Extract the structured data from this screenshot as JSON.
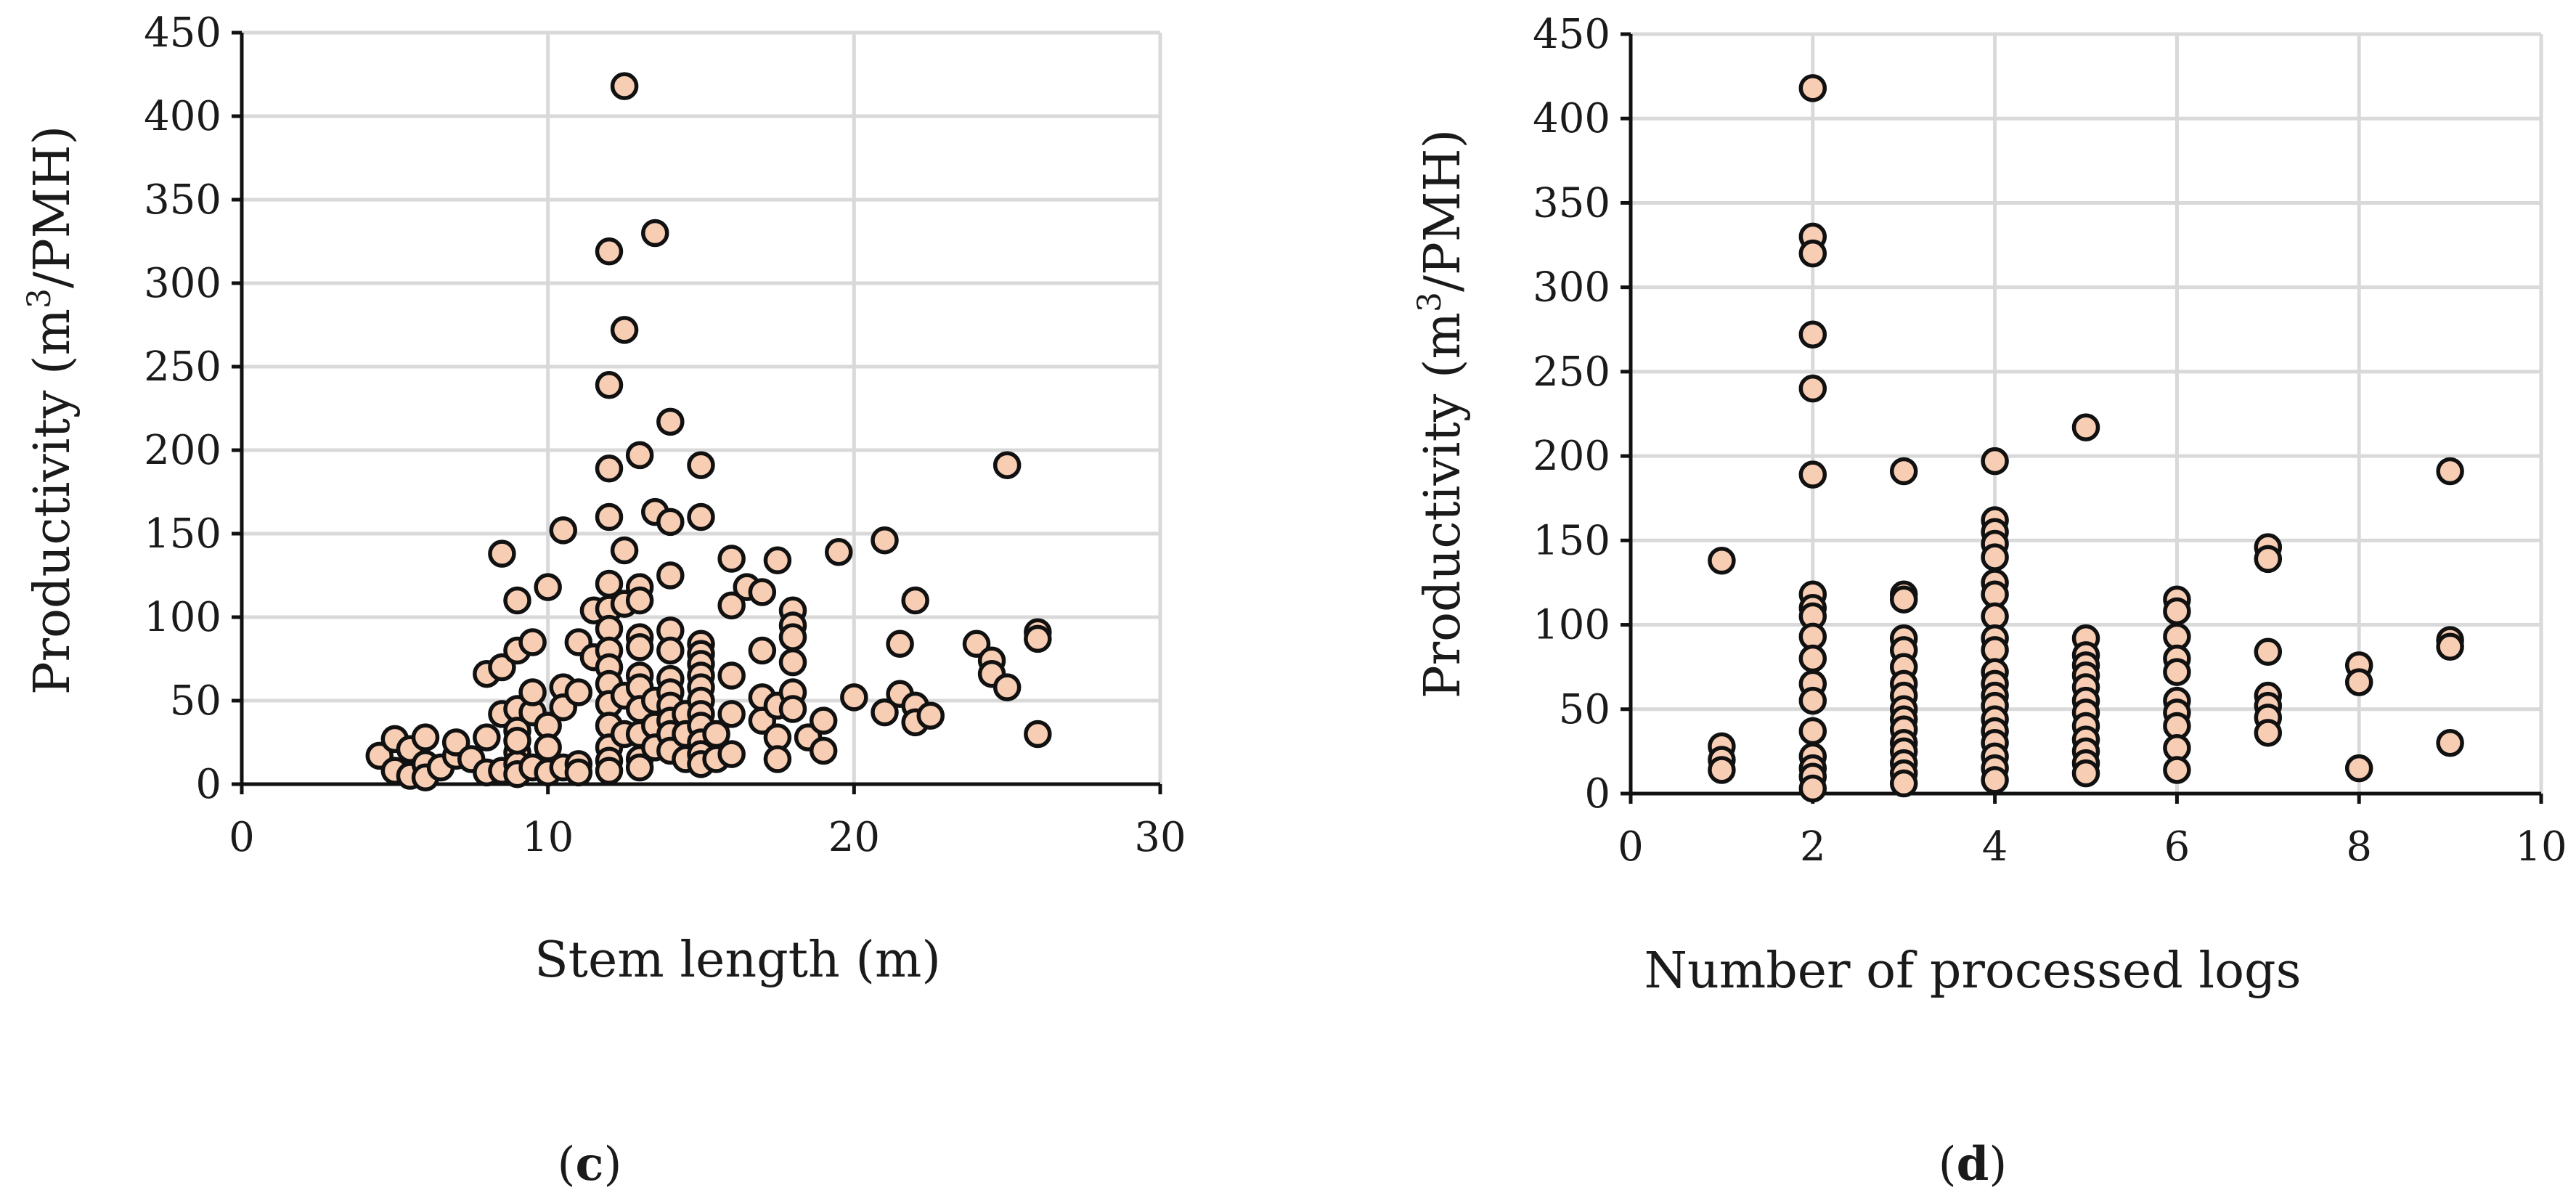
{
  "chart_data": [
    {
      "type": "scatter",
      "panel_label": "c",
      "xlabel": "Stem length (m)",
      "ylabel_prefix": "Productivity (m",
      "ylabel_sup": "3",
      "ylabel_suffix": "/PMH)",
      "xlim": [
        0,
        30
      ],
      "ylim": [
        0,
        450
      ],
      "xticks": [
        0,
        10,
        20,
        30
      ],
      "yticks": [
        0,
        50,
        100,
        150,
        200,
        250,
        300,
        350,
        400,
        450
      ],
      "grid": true,
      "marker_color": "#f7cdb3",
      "series": [
        {
          "name": "Stem length",
          "points": [
            [
              4.5,
              17
            ],
            [
              5,
              8
            ],
            [
              5,
              27
            ],
            [
              5.5,
              21
            ],
            [
              5.5,
              5
            ],
            [
              6,
              12
            ],
            [
              6,
              4
            ],
            [
              6,
              28
            ],
            [
              6.5,
              10
            ],
            [
              7,
              17
            ],
            [
              7,
              25
            ],
            [
              7.5,
              15
            ],
            [
              8,
              28
            ],
            [
              8,
              7
            ],
            [
              8,
              66
            ],
            [
              8.5,
              138
            ],
            [
              8.5,
              42
            ],
            [
              8.5,
              70
            ],
            [
              8.5,
              8
            ],
            [
              9,
              19
            ],
            [
              9,
              12
            ],
            [
              9,
              45
            ],
            [
              9,
              80
            ],
            [
              9,
              110
            ],
            [
              9,
              32
            ],
            [
              9,
              26
            ],
            [
              9,
              6
            ],
            [
              9.5,
              43
            ],
            [
              9.5,
              55
            ],
            [
              9.5,
              85
            ],
            [
              9.5,
              10
            ],
            [
              10,
              118
            ],
            [
              10,
              35
            ],
            [
              10,
              22
            ],
            [
              10,
              7
            ],
            [
              10.5,
              152
            ],
            [
              10.5,
              58
            ],
            [
              10.5,
              46
            ],
            [
              10.5,
              10
            ],
            [
              11,
              85
            ],
            [
              11,
              55
            ],
            [
              11,
              12
            ],
            [
              11,
              7
            ],
            [
              11.5,
              104
            ],
            [
              11.5,
              76
            ],
            [
              12,
              319
            ],
            [
              12,
              239
            ],
            [
              12,
              189
            ],
            [
              12,
              160
            ],
            [
              12,
              120
            ],
            [
              12,
              105
            ],
            [
              12,
              93
            ],
            [
              12,
              80
            ],
            [
              12,
              70
            ],
            [
              12,
              60
            ],
            [
              12,
              48
            ],
            [
              12,
              35
            ],
            [
              12,
              22
            ],
            [
              12,
              14
            ],
            [
              12,
              8
            ],
            [
              12.5,
              418
            ],
            [
              12.5,
              272
            ],
            [
              12.5,
              140
            ],
            [
              12.5,
              108
            ],
            [
              12.5,
              53
            ],
            [
              12.5,
              30
            ],
            [
              13,
              197
            ],
            [
              13,
              118
            ],
            [
              13,
              110
            ],
            [
              13,
              88
            ],
            [
              13,
              82
            ],
            [
              13,
              65
            ],
            [
              13,
              58
            ],
            [
              13,
              45
            ],
            [
              13,
              30
            ],
            [
              13,
              15
            ],
            [
              13,
              10
            ],
            [
              13.5,
              330
            ],
            [
              13.5,
              163
            ],
            [
              13.5,
              50
            ],
            [
              13.5,
              35
            ],
            [
              13.5,
              22
            ],
            [
              14,
              217
            ],
            [
              14,
              157
            ],
            [
              14,
              125
            ],
            [
              14,
              92
            ],
            [
              14,
              80
            ],
            [
              14,
              63
            ],
            [
              14,
              55
            ],
            [
              14,
              47
            ],
            [
              14,
              38
            ],
            [
              14,
              30
            ],
            [
              14,
              20
            ],
            [
              14.5,
              42
            ],
            [
              14.5,
              30
            ],
            [
              14.5,
              15
            ],
            [
              15,
              191
            ],
            [
              15,
              160
            ],
            [
              15,
              84
            ],
            [
              15,
              78
            ],
            [
              15,
              72
            ],
            [
              15,
              65
            ],
            [
              15,
              58
            ],
            [
              15,
              50
            ],
            [
              15,
              42
            ],
            [
              15,
              35
            ],
            [
              15,
              25
            ],
            [
              15,
              18
            ],
            [
              15,
              12
            ],
            [
              15.5,
              30
            ],
            [
              15.5,
              15
            ],
            [
              16,
              135
            ],
            [
              16,
              107
            ],
            [
              16,
              65
            ],
            [
              16,
              42
            ],
            [
              16,
              18
            ],
            [
              16.5,
              118
            ],
            [
              17,
              115
            ],
            [
              17,
              80
            ],
            [
              17,
              52
            ],
            [
              17,
              38
            ],
            [
              17.5,
              134
            ],
            [
              17.5,
              47
            ],
            [
              17.5,
              28
            ],
            [
              17.5,
              15
            ],
            [
              18,
              104
            ],
            [
              18,
              95
            ],
            [
              18,
              88
            ],
            [
              18,
              73
            ],
            [
              18,
              55
            ],
            [
              18,
              45
            ],
            [
              18.5,
              28
            ],
            [
              19,
              38
            ],
            [
              19,
              20
            ],
            [
              19.5,
              139
            ],
            [
              20,
              52
            ],
            [
              21,
              146
            ],
            [
              21,
              43
            ],
            [
              21.5,
              84
            ],
            [
              21.5,
              54
            ],
            [
              22,
              110
            ],
            [
              22,
              47
            ],
            [
              22,
              37
            ],
            [
              22.5,
              41
            ],
            [
              24,
              84
            ],
            [
              24.5,
              74
            ],
            [
              24.5,
              66
            ],
            [
              25,
              191
            ],
            [
              25,
              58
            ],
            [
              26,
              91
            ],
            [
              26,
              87
            ],
            [
              26,
              30
            ]
          ]
        }
      ]
    },
    {
      "type": "scatter",
      "panel_label": "d",
      "xlabel": "Number of processed logs",
      "ylabel_prefix": "Productivity (m",
      "ylabel_sup": "3",
      "ylabel_suffix": "/PMH)",
      "xlim": [
        0,
        10
      ],
      "ylim": [
        0,
        450
      ],
      "xticks": [
        0,
        2,
        4,
        6,
        8,
        10
      ],
      "yticks": [
        0,
        50,
        100,
        150,
        200,
        250,
        300,
        350,
        400,
        450
      ],
      "grid": true,
      "marker_color": "#f7cdb3",
      "series": [
        {
          "name": "Number of processed logs",
          "points": [
            [
              1,
              138
            ],
            [
              1,
              28
            ],
            [
              1,
              20
            ],
            [
              1,
              14
            ],
            [
              2,
              418
            ],
            [
              2,
              330
            ],
            [
              2,
              320
            ],
            [
              2,
              272
            ],
            [
              2,
              240
            ],
            [
              2,
              189
            ],
            [
              2,
              118
            ],
            [
              2,
              110
            ],
            [
              2,
              105
            ],
            [
              2,
              93
            ],
            [
              2,
              80
            ],
            [
              2,
              65
            ],
            [
              2,
              55
            ],
            [
              2,
              37
            ],
            [
              2,
              22
            ],
            [
              2,
              15
            ],
            [
              2,
              10
            ],
            [
              2,
              3
            ],
            [
              3,
              191
            ],
            [
              3,
              118
            ],
            [
              3,
              115
            ],
            [
              3,
              92
            ],
            [
              3,
              85
            ],
            [
              3,
              75
            ],
            [
              3,
              65
            ],
            [
              3,
              58
            ],
            [
              3,
              50
            ],
            [
              3,
              44
            ],
            [
              3,
              38
            ],
            [
              3,
              30
            ],
            [
              3,
              25
            ],
            [
              3,
              18
            ],
            [
              3,
              12
            ],
            [
              3,
              6
            ],
            [
              4,
              197
            ],
            [
              4,
              162
            ],
            [
              4,
              155
            ],
            [
              4,
              148
            ],
            [
              4,
              140
            ],
            [
              4,
              125
            ],
            [
              4,
              118
            ],
            [
              4,
              105
            ],
            [
              4,
              92
            ],
            [
              4,
              85
            ],
            [
              4,
              72
            ],
            [
              4,
              65
            ],
            [
              4,
              58
            ],
            [
              4,
              52
            ],
            [
              4,
              44
            ],
            [
              4,
              37
            ],
            [
              4,
              30
            ],
            [
              4,
              22
            ],
            [
              4,
              15
            ],
            [
              4,
              8
            ],
            [
              5,
              217
            ],
            [
              5,
              92
            ],
            [
              5,
              82
            ],
            [
              5,
              76
            ],
            [
              5,
              70
            ],
            [
              5,
              63
            ],
            [
              5,
              55
            ],
            [
              5,
              48
            ],
            [
              5,
              40
            ],
            [
              5,
              32
            ],
            [
              5,
              25
            ],
            [
              5,
              18
            ],
            [
              5,
              12
            ],
            [
              6,
              115
            ],
            [
              6,
              108
            ],
            [
              6,
              93
            ],
            [
              6,
              80
            ],
            [
              6,
              72
            ],
            [
              6,
              55
            ],
            [
              6,
              48
            ],
            [
              6,
              40
            ],
            [
              6,
              27
            ],
            [
              6,
              14
            ],
            [
              7,
              146
            ],
            [
              7,
              139
            ],
            [
              7,
              84
            ],
            [
              7,
              58
            ],
            [
              7,
              52
            ],
            [
              7,
              45
            ],
            [
              7,
              36
            ],
            [
              8,
              76
            ],
            [
              8,
              66
            ],
            [
              8,
              15
            ],
            [
              9,
              191
            ],
            [
              9,
              91
            ],
            [
              9,
              87
            ],
            [
              9,
              30
            ]
          ]
        }
      ]
    }
  ]
}
